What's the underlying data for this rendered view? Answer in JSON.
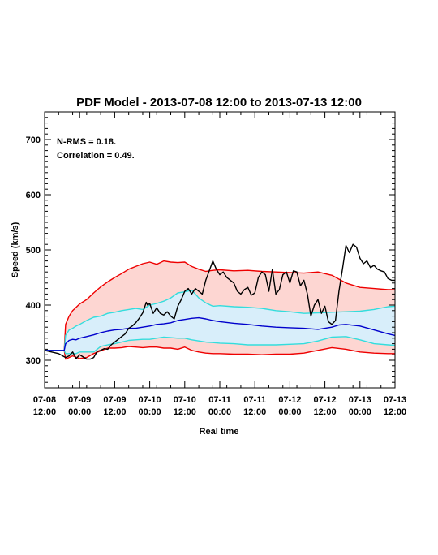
{
  "chart_data": {
    "type": "line",
    "title": "PDF Model - 2013-07-08 12:00 to 2013-07-13 12:00",
    "xlabel": "Real time",
    "ylabel": "Speed (km/s)",
    "xlim": [
      0,
      5
    ],
    "ylim": [
      250,
      750
    ],
    "yticks": [
      300,
      400,
      500,
      600,
      700
    ],
    "xticks": [
      {
        "x": 0.0,
        "line1": "07-08",
        "line2": "12:00"
      },
      {
        "x": 0.5,
        "line1": "07-09",
        "line2": "00:00"
      },
      {
        "x": 1.0,
        "line1": "07-09",
        "line2": "12:00"
      },
      {
        "x": 1.5,
        "line1": "07-10",
        "line2": "00:00"
      },
      {
        "x": 2.0,
        "line1": "07-10",
        "line2": "12:00"
      },
      {
        "x": 2.5,
        "line1": "07-11",
        "line2": "00:00"
      },
      {
        "x": 3.0,
        "line1": "07-11",
        "line2": "12:00"
      },
      {
        "x": 3.5,
        "line1": "07-12",
        "line2": "00:00"
      },
      {
        "x": 4.0,
        "line1": "07-12",
        "line2": "12:00"
      },
      {
        "x": 4.5,
        "line1": "07-13",
        "line2": "00:00"
      },
      {
        "x": 5.0,
        "line1": "07-13",
        "line2": "12:00"
      }
    ],
    "annotations": [
      "N-RMS = 0.18.",
      "Correlation = 0.49."
    ],
    "colors": {
      "observed": "#000000",
      "median": "#0000cc",
      "inner_band": "#33dddd",
      "outer_band": "#ee0000",
      "outer_fill": "#fdd6d2",
      "inner_fill": "#d8eefa"
    },
    "outer_band": {
      "x": [
        0.0,
        0.28,
        0.3,
        0.35,
        0.4,
        0.5,
        0.6,
        0.7,
        0.8,
        0.9,
        1.0,
        1.1,
        1.2,
        1.3,
        1.4,
        1.5,
        1.6,
        1.7,
        1.8,
        1.9,
        2.0,
        2.1,
        2.2,
        2.3,
        2.4,
        2.5,
        2.7,
        2.9,
        3.1,
        3.3,
        3.5,
        3.7,
        3.9,
        4.1,
        4.3,
        4.5,
        4.7,
        4.9,
        5.0
      ],
      "upper": [
        318,
        318,
        365,
        380,
        390,
        402,
        410,
        422,
        433,
        442,
        450,
        457,
        465,
        470,
        475,
        478,
        474,
        480,
        478,
        477,
        478,
        470,
        465,
        461,
        463,
        464,
        462,
        463,
        461,
        460,
        459,
        458,
        460,
        454,
        440,
        432,
        430,
        428,
        428
      ],
      "lower": [
        318,
        318,
        302,
        305,
        308,
        303,
        305,
        312,
        317,
        322,
        322,
        323,
        325,
        324,
        323,
        324,
        324,
        322,
        322,
        320,
        324,
        318,
        315,
        313,
        312,
        312,
        311,
        311,
        310,
        311,
        311,
        313,
        318,
        323,
        320,
        315,
        313,
        312,
        312
      ]
    },
    "inner_band": {
      "x": [
        0.0,
        0.28,
        0.3,
        0.35,
        0.4,
        0.45,
        0.5,
        0.6,
        0.7,
        0.8,
        0.9,
        1.0,
        1.1,
        1.2,
        1.3,
        1.4,
        1.5,
        1.6,
        1.7,
        1.8,
        1.9,
        2.0,
        2.1,
        2.2,
        2.3,
        2.4,
        2.5,
        2.7,
        2.9,
        3.1,
        3.3,
        3.5,
        3.7,
        3.9,
        4.1,
        4.3,
        4.5,
        4.7,
        4.9,
        5.0
      ],
      "upper": [
        318,
        318,
        345,
        355,
        358,
        362,
        365,
        372,
        378,
        380,
        385,
        387,
        390,
        392,
        394,
        392,
        400,
        403,
        407,
        413,
        422,
        424,
        427,
        413,
        404,
        398,
        399,
        397,
        396,
        394,
        390,
        388,
        385,
        386,
        387,
        388,
        389,
        392,
        397,
        398
      ],
      "lower": [
        318,
        318,
        312,
        312,
        312,
        312,
        315,
        315,
        315,
        325,
        328,
        330,
        333,
        336,
        337,
        338,
        338,
        340,
        342,
        341,
        340,
        340,
        337,
        335,
        333,
        332,
        331,
        330,
        328,
        328,
        328,
        329,
        330,
        335,
        342,
        343,
        337,
        330,
        328,
        327
      ]
    },
    "median": {
      "x": [
        0.0,
        0.28,
        0.3,
        0.35,
        0.4,
        0.45,
        0.5,
        0.6,
        0.7,
        0.8,
        0.9,
        1.0,
        1.1,
        1.2,
        1.3,
        1.4,
        1.5,
        1.6,
        1.7,
        1.8,
        1.9,
        2.0,
        2.1,
        2.2,
        2.3,
        2.4,
        2.5,
        2.7,
        2.9,
        3.1,
        3.3,
        3.5,
        3.7,
        3.9,
        4.1,
        4.2,
        4.3,
        4.5,
        4.7,
        4.9,
        5.0
      ],
      "values": [
        318,
        318,
        330,
        336,
        338,
        337,
        340,
        343,
        346,
        350,
        353,
        355,
        356,
        358,
        358,
        360,
        362,
        365,
        366,
        368,
        372,
        374,
        376,
        377,
        375,
        372,
        370,
        367,
        365,
        362,
        360,
        359,
        358,
        356,
        360,
        364,
        365,
        362,
        355,
        348,
        345
      ]
    },
    "observed": {
      "x": [
        0.0,
        0.1,
        0.2,
        0.3,
        0.35,
        0.4,
        0.45,
        0.5,
        0.55,
        0.6,
        0.65,
        0.7,
        0.75,
        0.8,
        0.85,
        0.9,
        0.95,
        1.0,
        1.05,
        1.1,
        1.15,
        1.2,
        1.25,
        1.3,
        1.35,
        1.4,
        1.45,
        1.47,
        1.5,
        1.55,
        1.6,
        1.65,
        1.7,
        1.75,
        1.8,
        1.85,
        1.9,
        1.95,
        2.0,
        2.05,
        2.1,
        2.15,
        2.2,
        2.25,
        2.3,
        2.35,
        2.4,
        2.45,
        2.5,
        2.55,
        2.6,
        2.65,
        2.7,
        2.75,
        2.8,
        2.85,
        2.9,
        2.95,
        3.0,
        3.05,
        3.1,
        3.15,
        3.2,
        3.25,
        3.3,
        3.35,
        3.4,
        3.45,
        3.5,
        3.55,
        3.6,
        3.65,
        3.7,
        3.75,
        3.8,
        3.85,
        3.9,
        3.95,
        4.0,
        4.05,
        4.1,
        4.15,
        4.2,
        4.25,
        4.3,
        4.35,
        4.4,
        4.45,
        4.5,
        4.55,
        4.6,
        4.65,
        4.7,
        4.75,
        4.8,
        4.85,
        4.9,
        4.95,
        5.0
      ],
      "values": [
        318,
        315,
        312,
        305,
        308,
        315,
        303,
        310,
        306,
        302,
        302,
        305,
        316,
        318,
        321,
        320,
        328,
        333,
        338,
        343,
        348,
        358,
        362,
        368,
        376,
        386,
        405,
        400,
        403,
        385,
        395,
        385,
        382,
        388,
        380,
        375,
        398,
        410,
        425,
        430,
        420,
        430,
        425,
        420,
        445,
        462,
        480,
        465,
        455,
        460,
        450,
        445,
        440,
        425,
        420,
        428,
        432,
        418,
        422,
        450,
        460,
        455,
        425,
        465,
        420,
        428,
        455,
        460,
        440,
        462,
        460,
        435,
        445,
        420,
        380,
        400,
        410,
        385,
        398,
        370,
        365,
        372,
        425,
        465,
        508,
        495,
        510,
        505,
        485,
        475,
        480,
        468,
        472,
        465,
        462,
        460,
        448,
        445,
        445
      ]
    }
  }
}
